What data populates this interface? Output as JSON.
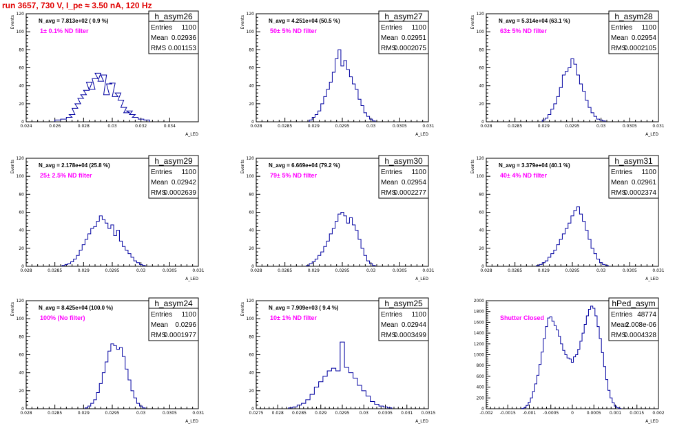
{
  "page_title": "run 3657,   730 V, I_pe ≈ 3.50 nA, 120 Hz",
  "colors": {
    "title": "#e00000",
    "histogram": "#0000a0",
    "filter_label": "#ff00ff"
  },
  "chart_data": [
    {
      "type": "bar",
      "name": "h_asym26",
      "title": "h_asym26",
      "ylabel": "Events",
      "xlabel": "A_LED",
      "n_avg_label": "N_avg = 7.813e+02 ( 0.9 %)",
      "filter_label": "1± 0.1% ND filter",
      "stats": {
        "entries": "1100",
        "mean": "0.02936",
        "rms": "0.001153"
      },
      "xlim": [
        0.024,
        0.036
      ],
      "ylim": [
        0,
        120
      ],
      "xticks": [
        "0.024",
        "0.026",
        "0.028",
        "0.03",
        "0.032",
        "0.034"
      ],
      "xtick_values": [
        0.024,
        0.026,
        0.028,
        0.03,
        0.032,
        0.034
      ],
      "yticks": [
        0,
        20,
        40,
        60,
        80,
        100,
        120
      ],
      "x": [
        0.0262,
        0.0266,
        0.027,
        0.0272,
        0.0274,
        0.0276,
        0.0278,
        0.028,
        0.0282,
        0.0284,
        0.0286,
        0.0288,
        0.029,
        0.0292,
        0.0294,
        0.0296,
        0.0298,
        0.03,
        0.0302,
        0.0304,
        0.0306,
        0.0308,
        0.031,
        0.0312,
        0.0314,
        0.0316,
        0.032,
        0.0324
      ],
      "values": [
        2,
        3,
        5,
        8,
        15,
        20,
        26,
        30,
        35,
        44,
        36,
        48,
        54,
        45,
        52,
        30,
        42,
        43,
        28,
        32,
        24,
        16,
        10,
        12,
        8,
        5,
        3,
        2
      ]
    },
    {
      "type": "bar",
      "name": "h_asym27",
      "title": "h_asym27",
      "ylabel": "Events",
      "xlabel": "A_LED",
      "n_avg_label": "N_avg = 4.251e+04 (50.5 %)",
      "filter_label": "50± 5% ND filter",
      "stats": {
        "entries": "1100",
        "mean": "0.02951",
        "rms": "0.0002075"
      },
      "xlim": [
        0.028,
        0.031
      ],
      "ylim": [
        0,
        120
      ],
      "xticks": [
        "0.028",
        "0.0285",
        "0.029",
        "0.0295",
        "0.03",
        "0.0305",
        "0.031"
      ],
      "xtick_values": [
        0.028,
        0.0285,
        0.029,
        0.0295,
        0.03,
        0.0305,
        0.031
      ],
      "yticks": [
        0,
        20,
        40,
        60,
        80,
        100,
        120
      ],
      "x": [
        0.02895,
        0.029,
        0.02905,
        0.0291,
        0.02915,
        0.0292,
        0.02925,
        0.0293,
        0.02935,
        0.0294,
        0.02945,
        0.0295,
        0.02955,
        0.0296,
        0.02965,
        0.0297,
        0.02975,
        0.0298,
        0.02985,
        0.0299,
        0.02995,
        0.03,
        0.03005
      ],
      "values": [
        2,
        5,
        8,
        12,
        20,
        28,
        36,
        44,
        55,
        70,
        80,
        62,
        68,
        58,
        50,
        42,
        36,
        25,
        18,
        10,
        6,
        3,
        1
      ]
    },
    {
      "type": "bar",
      "name": "h_asym28",
      "title": "h_asym28",
      "ylabel": "Events",
      "xlabel": "A_LED",
      "n_avg_label": "N_avg = 5.314e+04 (63.1 %)",
      "filter_label": "63± 5% ND filter",
      "stats": {
        "entries": "1100",
        "mean": "0.02954",
        "rms": "0.0002105"
      },
      "xlim": [
        0.028,
        0.031
      ],
      "ylim": [
        0,
        120
      ],
      "xticks": [
        "0.028",
        "0.0285",
        "0.029",
        "0.0295",
        "0.03",
        "0.0305",
        "0.031"
      ],
      "xtick_values": [
        0.028,
        0.0285,
        0.029,
        0.0295,
        0.03,
        0.0305,
        0.031
      ],
      "yticks": [
        0,
        20,
        40,
        60,
        80,
        100,
        120
      ],
      "x": [
        0.029,
        0.02905,
        0.0291,
        0.02915,
        0.0292,
        0.02925,
        0.0293,
        0.02935,
        0.0294,
        0.02945,
        0.0295,
        0.02955,
        0.0296,
        0.02965,
        0.0297,
        0.02975,
        0.0298,
        0.02985,
        0.0299,
        0.02995,
        0.03,
        0.03005
      ],
      "values": [
        2,
        4,
        8,
        14,
        20,
        28,
        38,
        52,
        56,
        60,
        70,
        64,
        52,
        42,
        34,
        24,
        16,
        10,
        6,
        3,
        2,
        1
      ]
    },
    {
      "type": "bar",
      "name": "h_asym29",
      "title": "h_asym29",
      "ylabel": "Events",
      "xlabel": "A_LED",
      "n_avg_label": "N_avg = 2.178e+04 (25.8 %)",
      "filter_label": "25± 2.5% ND filter",
      "stats": {
        "entries": "1100",
        "mean": "0.02942",
        "rms": "0.0002639"
      },
      "xlim": [
        0.028,
        0.031
      ],
      "ylim": [
        0,
        120
      ],
      "xticks": [
        "0.028",
        "0.0285",
        "0.029",
        "0.0295",
        "0.03",
        "0.0305",
        "0.031"
      ],
      "xtick_values": [
        0.028,
        0.0285,
        0.029,
        0.0295,
        0.03,
        0.0305,
        0.031
      ],
      "yticks": [
        0,
        20,
        40,
        60,
        80,
        100,
        120
      ],
      "x": [
        0.02865,
        0.0287,
        0.02875,
        0.0288,
        0.02885,
        0.0289,
        0.02895,
        0.029,
        0.02905,
        0.0291,
        0.02915,
        0.0292,
        0.02925,
        0.0293,
        0.02935,
        0.0294,
        0.02945,
        0.0295,
        0.02955,
        0.0296,
        0.02965,
        0.0297,
        0.02975,
        0.0298,
        0.02985,
        0.0299,
        0.02995,
        0.03,
        0.03005
      ],
      "values": [
        1,
        2,
        3,
        5,
        8,
        12,
        18,
        24,
        30,
        36,
        42,
        44,
        50,
        56,
        52,
        48,
        42,
        46,
        34,
        40,
        28,
        22,
        18,
        14,
        10,
        6,
        4,
        2,
        1
      ]
    },
    {
      "type": "bar",
      "name": "h_asym30",
      "title": "h_asym30",
      "ylabel": "Events",
      "xlabel": "A_LED",
      "n_avg_label": "N_avg = 6.669e+04 (79.2 %)",
      "filter_label": "79± 5% ND filter",
      "stats": {
        "entries": "1100",
        "mean": "0.02954",
        "rms": "0.0002277"
      },
      "xlim": [
        0.028,
        0.031
      ],
      "ylim": [
        0,
        120
      ],
      "xticks": [
        "0.028",
        "0.0285",
        "0.029",
        "0.0295",
        "0.03",
        "0.0305",
        "0.031"
      ],
      "xtick_values": [
        0.028,
        0.0285,
        0.029,
        0.0295,
        0.03,
        0.0305,
        0.031
      ],
      "yticks": [
        0,
        20,
        40,
        60,
        80,
        100,
        120
      ],
      "x": [
        0.0289,
        0.02895,
        0.029,
        0.02905,
        0.0291,
        0.02915,
        0.0292,
        0.02925,
        0.0293,
        0.02935,
        0.0294,
        0.02945,
        0.0295,
        0.02955,
        0.0296,
        0.02965,
        0.0297,
        0.02975,
        0.0298,
        0.02985,
        0.0299,
        0.02995,
        0.03,
        0.03005
      ],
      "values": [
        1,
        3,
        5,
        8,
        12,
        16,
        22,
        28,
        36,
        42,
        50,
        58,
        60,
        56,
        48,
        54,
        46,
        40,
        30,
        20,
        12,
        6,
        3,
        1
      ]
    },
    {
      "type": "bar",
      "name": "h_asym31",
      "title": "h_asym31",
      "ylabel": "Events",
      "xlabel": "A_LED",
      "n_avg_label": "N_avg = 3.379e+04 (40.1 %)",
      "filter_label": "40± 4% ND filter",
      "stats": {
        "entries": "1100",
        "mean": "0.02961",
        "rms": "0.0002374"
      },
      "xlim": [
        0.028,
        0.031
      ],
      "ylim": [
        0,
        120
      ],
      "xticks": [
        "0.028",
        "0.0285",
        "0.029",
        "0.0295",
        "0.03",
        "0.0305",
        "0.031"
      ],
      "xtick_values": [
        0.028,
        0.0285,
        0.029,
        0.0295,
        0.03,
        0.0305,
        0.031
      ],
      "yticks": [
        0,
        20,
        40,
        60,
        80,
        100,
        120
      ],
      "x": [
        0.0289,
        0.02895,
        0.029,
        0.02905,
        0.0291,
        0.02915,
        0.0292,
        0.02925,
        0.0293,
        0.02935,
        0.0294,
        0.02945,
        0.0295,
        0.02955,
        0.0296,
        0.02965,
        0.0297,
        0.02975,
        0.0298,
        0.02985,
        0.0299,
        0.02995,
        0.03,
        0.03005,
        0.0301
      ],
      "values": [
        1,
        2,
        4,
        6,
        10,
        14,
        18,
        24,
        30,
        36,
        42,
        48,
        56,
        62,
        66,
        58,
        50,
        40,
        30,
        20,
        14,
        8,
        4,
        2,
        1
      ]
    },
    {
      "type": "bar",
      "name": "h_asym24",
      "title": "h_asym24",
      "ylabel": "Events",
      "xlabel": "A_LED",
      "n_avg_label": "N_avg = 8.425e+04 (100.0 %)",
      "filter_label": "100% (No filter)",
      "stats": {
        "entries": "1100",
        "mean": "0.0296",
        "rms": "0.0001977"
      },
      "xlim": [
        0.028,
        0.031
      ],
      "ylim": [
        0,
        120
      ],
      "xticks": [
        "0.028",
        "0.0285",
        "0.029",
        "0.0295",
        "0.03",
        "0.0305",
        "0.031"
      ],
      "xtick_values": [
        0.028,
        0.0285,
        0.029,
        0.0295,
        0.03,
        0.0305,
        0.031
      ],
      "yticks": [
        0,
        20,
        40,
        60,
        80,
        100,
        120
      ],
      "x": [
        0.02905,
        0.0291,
        0.02915,
        0.0292,
        0.02925,
        0.0293,
        0.02935,
        0.0294,
        0.02945,
        0.0295,
        0.02955,
        0.0296,
        0.02965,
        0.0297,
        0.02975,
        0.0298,
        0.02985,
        0.0299,
        0.02995,
        0.03,
        0.03005
      ],
      "values": [
        1,
        3,
        6,
        10,
        18,
        28,
        40,
        52,
        64,
        72,
        70,
        66,
        68,
        58,
        44,
        32,
        20,
        12,
        6,
        3,
        1
      ]
    },
    {
      "type": "bar",
      "name": "h_asym25",
      "title": "h_asym25",
      "ylabel": "Events",
      "xlabel": "A_LED",
      "n_avg_label": "N_avg = 7.909e+03 ( 9.4 %)",
      "filter_label": "10± 1% ND filter",
      "stats": {
        "entries": "1100",
        "mean": "0.02944",
        "rms": "0.0003499"
      },
      "xlim": [
        0.0275,
        0.0315
      ],
      "ylim": [
        0,
        120
      ],
      "xticks": [
        "0.0275",
        "0.028",
        "0.0285",
        "0.029",
        "0.0295",
        "0.03",
        "0.0305",
        "0.031",
        "0.0315"
      ],
      "xtick_values": [
        0.0275,
        0.028,
        0.0285,
        0.029,
        0.0295,
        0.03,
        0.0305,
        0.031,
        0.0315
      ],
      "yticks": [
        0,
        20,
        40,
        60,
        80,
        100,
        120
      ],
      "x": [
        0.0283,
        0.0284,
        0.0285,
        0.0286,
        0.0287,
        0.0288,
        0.0289,
        0.029,
        0.0291,
        0.0292,
        0.0293,
        0.0294,
        0.0295,
        0.0296,
        0.0297,
        0.0298,
        0.0299,
        0.03,
        0.0301,
        0.0302,
        0.0303,
        0.0304,
        0.0305,
        0.0306
      ],
      "values": [
        1,
        2,
        4,
        6,
        10,
        16,
        24,
        30,
        36,
        42,
        45,
        42,
        74,
        46,
        40,
        34,
        26,
        20,
        14,
        8,
        5,
        3,
        2,
        1
      ]
    },
    {
      "type": "bar",
      "name": "hPed_asym",
      "title": "hPed_asym",
      "ylabel": "",
      "xlabel": "A_LED",
      "n_avg_label": "",
      "filter_label": "Shutter Closed",
      "stats": {
        "entries": "48774",
        "mean": "2.008e-06",
        "rms": "0.0004328"
      },
      "xlim": [
        -0.002,
        0.002
      ],
      "ylim": [
        0,
        2000
      ],
      "xticks": [
        "-0.002",
        "-0.0015",
        "-0.001",
        "-0.0005",
        "0",
        "0.0005",
        "0.001",
        "0.0015",
        "0.002"
      ],
      "xtick_values": [
        -0.002,
        -0.0015,
        -0.001,
        -0.0005,
        0,
        0.0005,
        0.001,
        0.0015,
        0.002
      ],
      "yticks": [
        0,
        200,
        400,
        600,
        800,
        1000,
        1200,
        1400,
        1600,
        1800,
        2000
      ],
      "x": [
        -0.00115,
        -0.0011,
        -0.00105,
        -0.001,
        -0.00095,
        -0.0009,
        -0.00085,
        -0.0008,
        -0.00075,
        -0.0007,
        -0.00065,
        -0.0006,
        -0.00055,
        -0.0005,
        -0.00045,
        -0.0004,
        -0.00035,
        -0.0003,
        -0.00025,
        -0.0002,
        -0.00015,
        -0.0001,
        -5e-05,
        0,
        5e-05,
        0.0001,
        0.00015,
        0.0002,
        0.00025,
        0.0003,
        0.00035,
        0.0004,
        0.00045,
        0.0005,
        0.00055,
        0.0006,
        0.00065,
        0.0007,
        0.00075,
        0.0008,
        0.00085,
        0.0009,
        0.00095,
        0.001,
        0.00105,
        0.0011
      ],
      "values": [
        5,
        20,
        60,
        120,
        200,
        320,
        460,
        620,
        820,
        1050,
        1300,
        1520,
        1680,
        1700,
        1620,
        1540,
        1460,
        1340,
        1200,
        1080,
        1000,
        940,
        920,
        860,
        960,
        1000,
        1100,
        1250,
        1400,
        1560,
        1720,
        1840,
        1900,
        1860,
        1720,
        1520,
        1300,
        1040,
        780,
        540,
        340,
        200,
        110,
        50,
        20,
        5
      ]
    }
  ]
}
